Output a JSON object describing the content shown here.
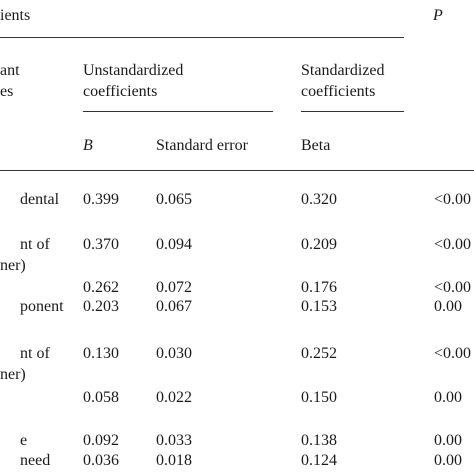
{
  "table": {
    "title_fragment": "ients",
    "p_header": "P",
    "variable_header": [
      "ant",
      "es"
    ],
    "unstd_header": [
      "Unstandardized",
      "coefficients"
    ],
    "std_header": [
      "Standardized",
      "coefficients"
    ],
    "sub_b": "B",
    "sub_se": "Standard error",
    "sub_beta": "Beta",
    "rows": [
      {
        "label": [
          "dental"
        ],
        "b": "0.399",
        "se": "0.065",
        "beta": "0.320",
        "p": "<0.00"
      },
      {
        "label": [
          "nt of",
          "ner)"
        ],
        "b": "0.370",
        "se": "0.094",
        "beta": "0.209",
        "p": "<0.00"
      },
      {
        "label": [],
        "b": "0.262",
        "se": "0.072",
        "beta": "0.176",
        "p": "<0.00"
      },
      {
        "label": [
          "ponent"
        ],
        "b": "0.203",
        "se": "0.067",
        "beta": "0.153",
        "p": "0.00"
      },
      {
        "label": [
          "nt of",
          "ner)"
        ],
        "b": "0.130",
        "se": "0.030",
        "beta": "0.252",
        "p": "<0.00"
      },
      {
        "label": [],
        "b": "0.058",
        "se": "0.022",
        "beta": "0.150",
        "p": "0.00"
      },
      {
        "label": [
          "e"
        ],
        "b": "0.092",
        "se": "0.033",
        "beta": "0.138",
        "p": "0.00"
      },
      {
        "label": [
          "need"
        ],
        "b": "0.036",
        "se": "0.018",
        "beta": "0.124",
        "p": "0.00"
      }
    ]
  }
}
